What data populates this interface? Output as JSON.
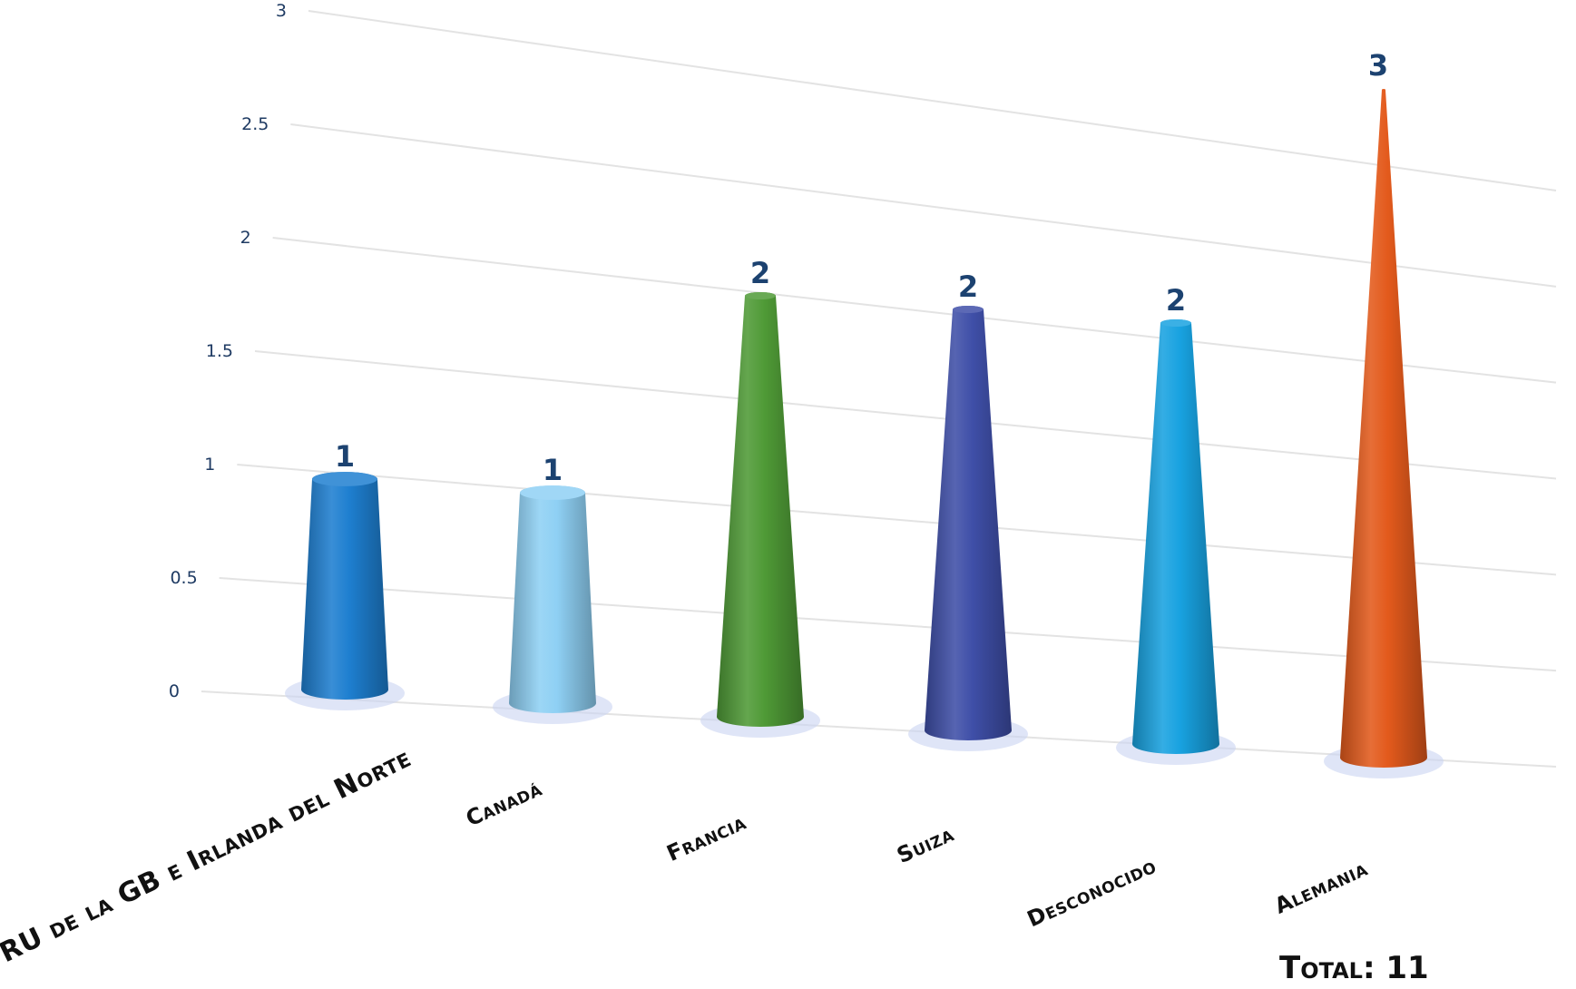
{
  "chart_data": {
    "type": "bar",
    "style": "3d-cone",
    "categories": [
      "RU de la GB e Irlanda del Norte",
      "Canadá",
      "Francia",
      "Suiza",
      "Desconocido",
      "Alemania"
    ],
    "values": [
      1,
      1,
      2,
      2,
      2,
      3
    ],
    "data_labels": [
      "1",
      "1",
      "2",
      "2",
      "2",
      "3"
    ],
    "colors": [
      "#1e7fd0",
      "#8fd0f4",
      "#4f9a36",
      "#3f4fa8",
      "#18a2e0",
      "#e35a1c"
    ],
    "ylim": [
      0,
      3
    ],
    "yticks": [
      "0",
      "0.5",
      "1",
      "1.5",
      "2",
      "2.5",
      "3"
    ],
    "grid": true,
    "legend": "none",
    "title": "",
    "xlabel": "",
    "ylabel": ""
  },
  "total_label": "Total: 11"
}
